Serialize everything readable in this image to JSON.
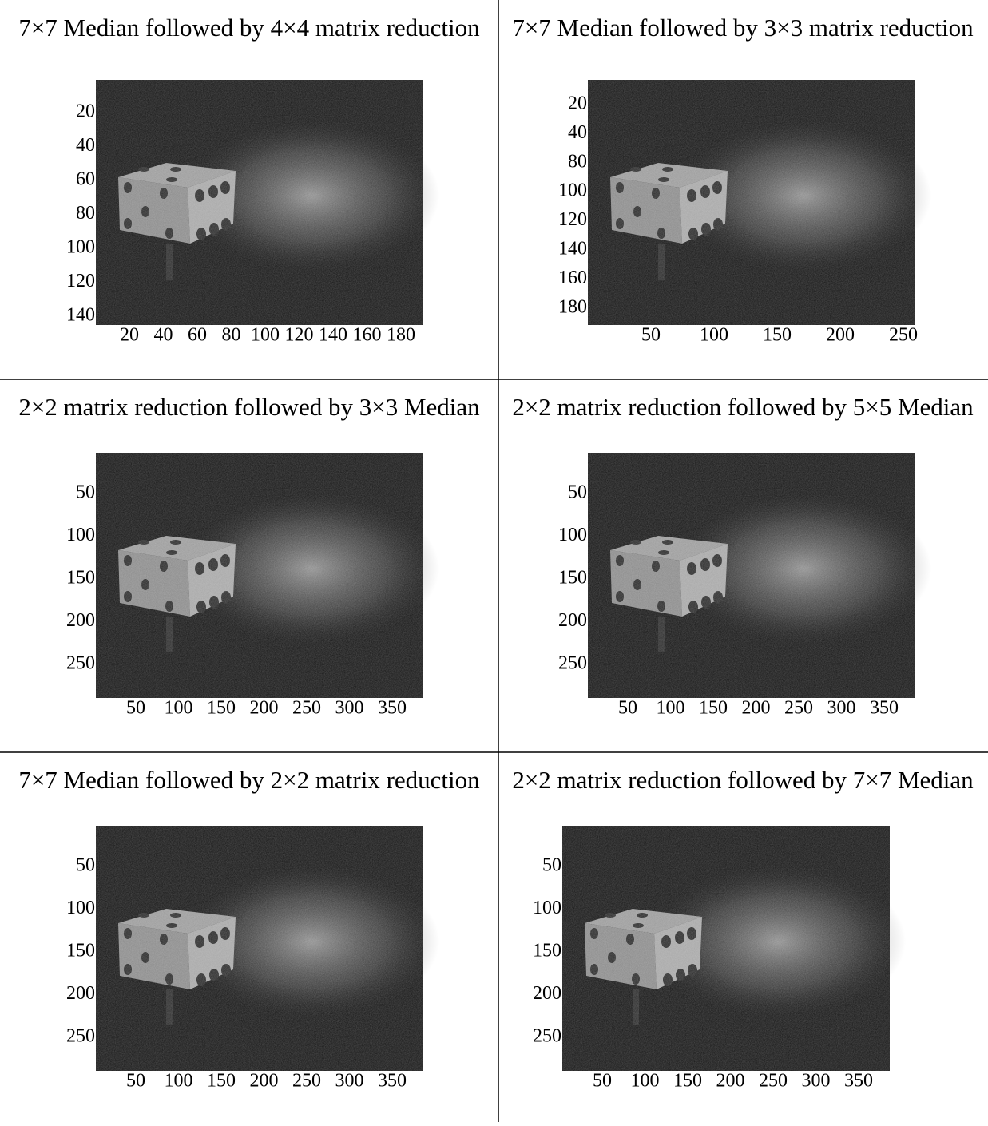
{
  "panels": [
    {
      "title": "7×7 Median followed by 4×4 matrix reduction",
      "yticks": [
        20,
        40,
        60,
        80,
        100,
        120,
        140
      ],
      "xticks": [
        20,
        40,
        60,
        80,
        100,
        120,
        140,
        160,
        180
      ]
    },
    {
      "title": "7×7 Median followed by 3×3 matrix reduction",
      "yticks": [
        20,
        40,
        80,
        100,
        120,
        140,
        160,
        180
      ],
      "xticks": [
        50,
        100,
        150,
        200,
        250
      ]
    },
    {
      "title": "2×2 matrix reduction followed by 3×3 Median",
      "yticks": [
        50,
        100,
        150,
        200,
        250
      ],
      "xticks": [
        50,
        100,
        150,
        200,
        250,
        300,
        350
      ]
    },
    {
      "title": "2×2 matrix reduction followed by 5×5 Median",
      "yticks": [
        50,
        100,
        150,
        200,
        250
      ],
      "xticks": [
        50,
        100,
        150,
        200,
        250,
        300,
        350
      ]
    },
    {
      "title": "7×7 Median followed by 2×2 matrix reduction",
      "yticks": [
        50,
        100,
        150,
        200,
        250
      ],
      "xticks": [
        50,
        100,
        150,
        200,
        250,
        300,
        350
      ]
    },
    {
      "title": "2×2 matrix reduction followed by 7×7 Median",
      "yticks": [
        50,
        100,
        150,
        200,
        250
      ],
      "xticks": [
        50,
        100,
        150,
        200,
        250,
        300,
        350
      ]
    }
  ]
}
